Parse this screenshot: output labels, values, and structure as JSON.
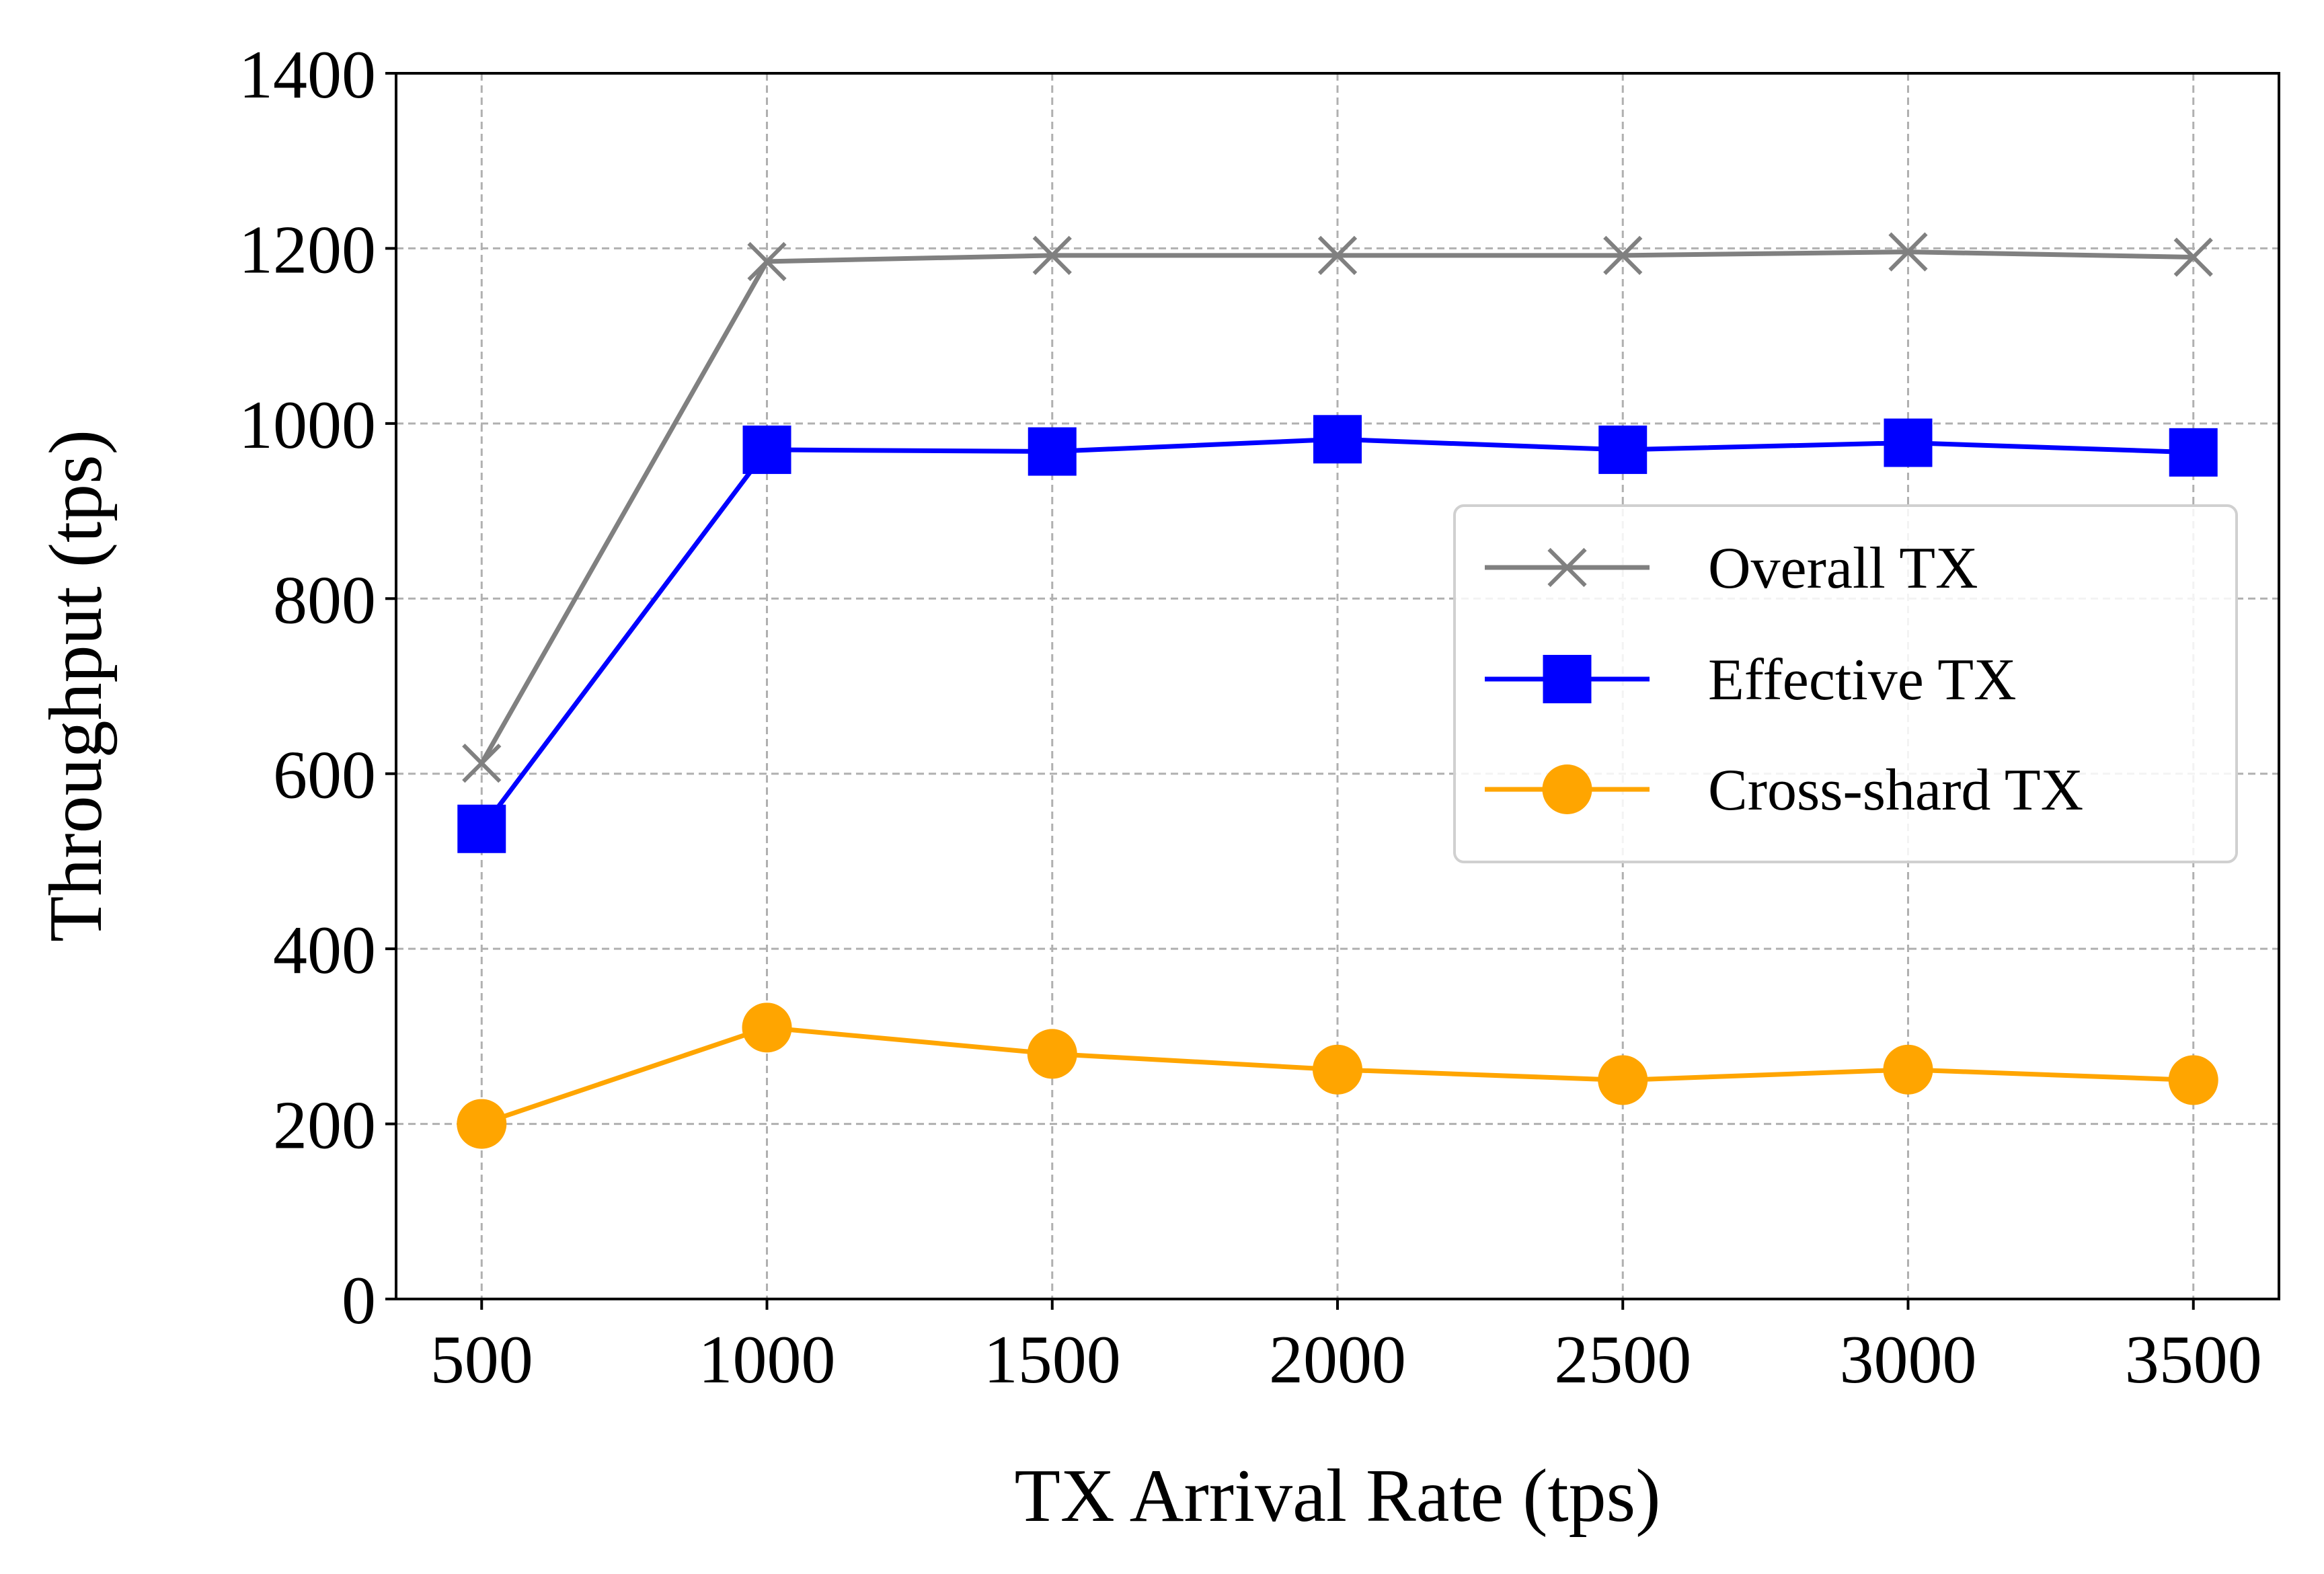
{
  "chart_data": {
    "type": "line",
    "xlabel": "TX Arrival Rate (tps)",
    "ylabel": "Throughput (tps)",
    "x": [
      500,
      1000,
      1500,
      2000,
      2500,
      3000,
      3500
    ],
    "xlim": [
      350,
      3650
    ],
    "ylim": [
      0,
      1400
    ],
    "xticks": [
      "500",
      "1000",
      "1500",
      "2000",
      "2500",
      "3000",
      "3500"
    ],
    "yticks": [
      "0",
      "200",
      "400",
      "600",
      "800",
      "1000",
      "1200",
      "1400"
    ],
    "grid": true,
    "legend_position": "center-right",
    "series": [
      {
        "name": "Overall TX",
        "color": "#808080",
        "marker": "x",
        "values": [
          612,
          1185,
          1192,
          1192,
          1192,
          1196,
          1190
        ]
      },
      {
        "name": "Effective TX",
        "color": "#0000ff",
        "marker": "square",
        "values": [
          537,
          970,
          968,
          982,
          970,
          978,
          967
        ]
      },
      {
        "name": "Cross-shard TX",
        "color": "#ffa500",
        "marker": "circle",
        "values": [
          200,
          310,
          280,
          262,
          250,
          262,
          250
        ]
      }
    ]
  }
}
